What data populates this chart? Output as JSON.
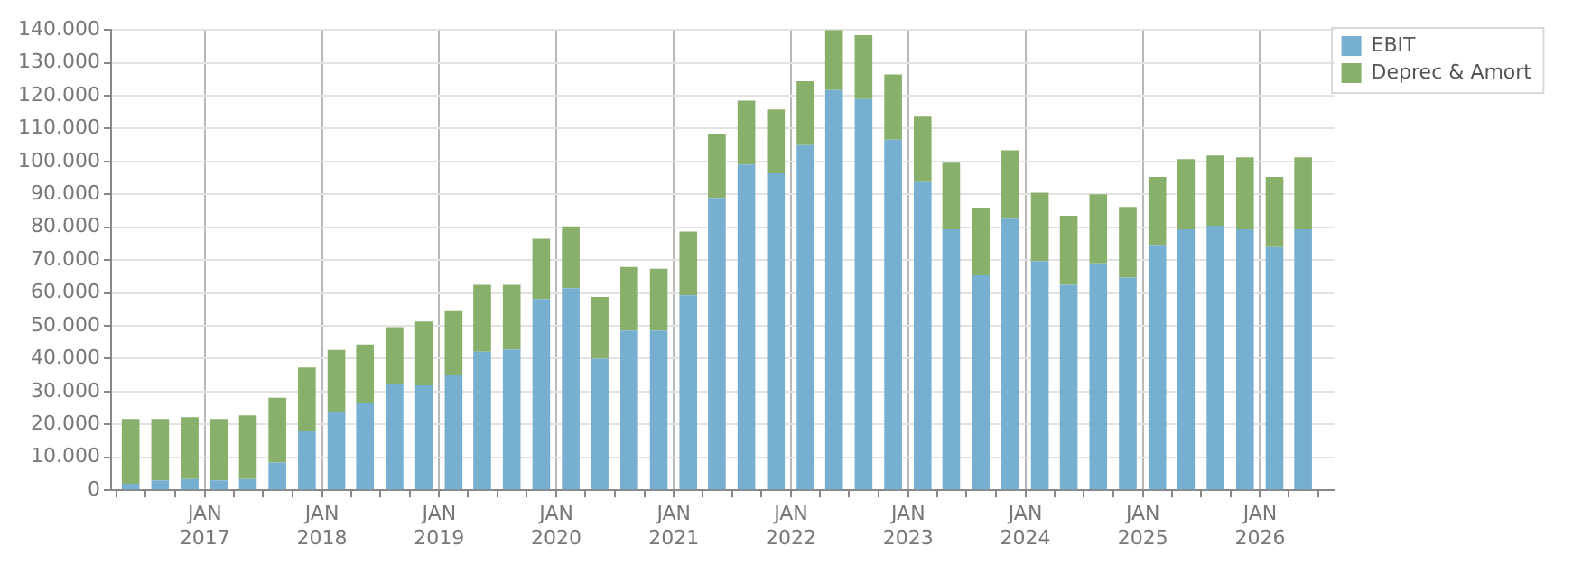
{
  "chart_data": {
    "type": "bar",
    "stacked": true,
    "x": [
      "2016-05-15",
      "2016-08-15",
      "2016-11-15",
      "2017-02-15",
      "2017-05-15",
      "2017-08-15",
      "2017-11-15",
      "2018-02-15",
      "2018-05-15",
      "2018-08-15",
      "2018-11-15",
      "2019-02-15",
      "2019-05-15",
      "2019-08-15",
      "2019-11-15",
      "2020-02-15",
      "2020-05-15",
      "2020-08-15",
      "2020-11-15",
      "2021-02-15",
      "2021-05-15",
      "2021-08-15",
      "2021-11-15",
      "2022-02-15",
      "2022-05-15",
      "2022-08-15",
      "2022-11-15",
      "2023-02-15",
      "2023-05-15",
      "2023-08-15",
      "2023-11-15",
      "2024-02-15",
      "2024-05-15",
      "2024-08-15",
      "2024-11-15",
      "2025-02-15",
      "2025-05-15",
      "2025-08-15",
      "2025-11-15",
      "2026-02-15",
      "2026-05-15"
    ],
    "series": [
      {
        "name": "EBIT",
        "color": "#77afd1",
        "values": [
          2000,
          3000,
          3400,
          3000,
          3400,
          8400,
          17900,
          23700,
          26700,
          32400,
          31900,
          35100,
          42100,
          42800,
          58200,
          61500,
          40000,
          48600,
          48600,
          59300,
          88900,
          99100,
          96400,
          105000,
          121700,
          119000,
          106600,
          93700,
          79400,
          65400,
          82600,
          69700,
          62500,
          69000,
          64700,
          74400,
          79400,
          80500,
          79400,
          74000,
          79400
        ]
      },
      {
        "name": "Deprec & Amort",
        "color": "#88b06b",
        "values": [
          19700,
          18700,
          18800,
          18700,
          19400,
          19700,
          19400,
          19000,
          17600,
          17200,
          19400,
          19400,
          20400,
          19700,
          18300,
          18800,
          18800,
          19300,
          18800,
          19400,
          19300,
          19400,
          19400,
          19400,
          18300,
          19400,
          19900,
          19900,
          20200,
          20300,
          20800,
          20800,
          21000,
          21000,
          21500,
          20900,
          21300,
          21300,
          21900,
          21300,
          21900
        ]
      }
    ],
    "xlim": [
      "2016-03-15",
      "2026-08-20"
    ],
    "xticks": [
      {
        "value": "2016-04-01",
        "label": null
      },
      {
        "value": "2016-07-01",
        "label": null
      },
      {
        "value": "2016-10-01",
        "label": null
      },
      {
        "value": "2017-01-01",
        "label": "JAN 2017"
      },
      {
        "value": "2017-04-01",
        "label": null
      },
      {
        "value": "2017-07-01",
        "label": null
      },
      {
        "value": "2017-10-01",
        "label": null
      },
      {
        "value": "2018-01-01",
        "label": "JAN 2018"
      },
      {
        "value": "2018-04-01",
        "label": null
      },
      {
        "value": "2018-07-01",
        "label": null
      },
      {
        "value": "2018-10-01",
        "label": null
      },
      {
        "value": "2019-01-01",
        "label": "JAN 2019"
      },
      {
        "value": "2019-04-01",
        "label": null
      },
      {
        "value": "2019-07-01",
        "label": null
      },
      {
        "value": "2019-10-01",
        "label": null
      },
      {
        "value": "2020-01-01",
        "label": "JAN 2020"
      },
      {
        "value": "2020-04-01",
        "label": null
      },
      {
        "value": "2020-07-01",
        "label": null
      },
      {
        "value": "2020-10-01",
        "label": null
      },
      {
        "value": "2021-01-01",
        "label": "JAN 2021"
      },
      {
        "value": "2021-04-01",
        "label": null
      },
      {
        "value": "2021-07-01",
        "label": null
      },
      {
        "value": "2021-10-01",
        "label": null
      },
      {
        "value": "2022-01-01",
        "label": "JAN 2022"
      },
      {
        "value": "2022-04-01",
        "label": null
      },
      {
        "value": "2022-07-01",
        "label": null
      },
      {
        "value": "2022-10-01",
        "label": null
      },
      {
        "value": "2023-01-01",
        "label": "JAN 2023"
      },
      {
        "value": "2023-04-01",
        "label": null
      },
      {
        "value": "2023-07-01",
        "label": null
      },
      {
        "value": "2023-10-01",
        "label": null
      },
      {
        "value": "2024-01-01",
        "label": "JAN 2024"
      },
      {
        "value": "2024-04-01",
        "label": null
      },
      {
        "value": "2024-07-01",
        "label": null
      },
      {
        "value": "2024-10-01",
        "label": null
      },
      {
        "value": "2025-01-01",
        "label": "JAN 2025"
      },
      {
        "value": "2025-04-01",
        "label": null
      },
      {
        "value": "2025-07-01",
        "label": null
      },
      {
        "value": "2025-10-01",
        "label": null
      },
      {
        "value": "2026-01-01",
        "label": "JAN 2026"
      },
      {
        "value": "2026-04-01",
        "label": null
      },
      {
        "value": "2026-07-01",
        "label": null
      }
    ],
    "ylim": [
      0,
      140000
    ],
    "yticks": [
      {
        "value": 0,
        "label": "0"
      },
      {
        "value": 10000,
        "label": "10.000"
      },
      {
        "value": 20000,
        "label": "20.000"
      },
      {
        "value": 30000,
        "label": "30.000"
      },
      {
        "value": 40000,
        "label": "40.000"
      },
      {
        "value": 50000,
        "label": "50.000"
      },
      {
        "value": 60000,
        "label": "60.000"
      },
      {
        "value": 70000,
        "label": "70.000"
      },
      {
        "value": 80000,
        "label": "80.000"
      },
      {
        "value": 90000,
        "label": "90.000"
      },
      {
        "value": 100000,
        "label": "100.000"
      },
      {
        "value": 110000,
        "label": "110.000"
      },
      {
        "value": 120000,
        "label": "120.000"
      },
      {
        "value": 130000,
        "label": "130.000"
      },
      {
        "value": 140000,
        "label": "140.000"
      }
    ],
    "grid": true,
    "legend": "top right"
  }
}
